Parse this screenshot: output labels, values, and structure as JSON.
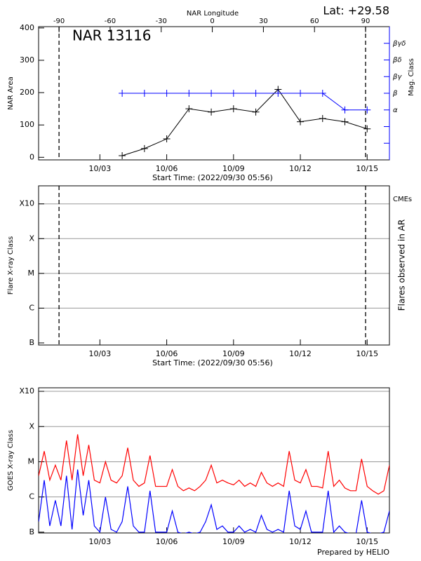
{
  "chart_data": [
    {
      "type": "line",
      "title": "NAR 13116",
      "annotation": "Lat: +29.58",
      "x_label": "Start Time: (2022/09/30 05:56)",
      "y_label": "NAR Area",
      "x2_label": "NAR Longitude",
      "y2_label": "Mag. Class",
      "xlim": [
        "09/30 05:56",
        "10/16 00:00"
      ],
      "xticks": [
        "10/03",
        "10/06",
        "10/09",
        "10/12",
        "10/15"
      ],
      "x2lim": [
        -102,
        104
      ],
      "x2ticks": [
        -90,
        -60,
        -30,
        0,
        30,
        60,
        90
      ],
      "ylim": [
        -8,
        404
      ],
      "yticks": [
        0,
        100,
        200,
        300,
        400
      ],
      "y2ticks": [
        null,
        null,
        "α",
        "β",
        "βγ",
        "βδ",
        "βγδ"
      ],
      "x": [
        "10/04",
        "10/05",
        "10/06",
        "10/07",
        "10/08",
        "10/09",
        "10/10",
        "10/11",
        "10/12",
        "10/13",
        "10/14",
        "10/15"
      ],
      "series": [
        {
          "color": "#000000",
          "values": [
            5,
            27,
            57,
            150,
            140,
            150,
            140,
            210,
            110,
            120,
            110,
            88
          ]
        },
        {
          "color": "#0000ff",
          "axis": "y2",
          "values": [
            "β",
            "β",
            "β",
            "β",
            "β",
            "β",
            "β",
            "β",
            "β",
            "β",
            "α",
            "α"
          ]
        }
      ]
    },
    {
      "type": "flares",
      "x_label": "Start Time: (2022/09/30 05:56)",
      "y_label": "Flare X-ray Class",
      "y2_label": "Flares observed in AR",
      "annotation": "CMEs",
      "annotation_color": "#ff0000",
      "xlim": [
        "09/30 05:56",
        "10/16 00:00"
      ],
      "xticks": [
        "10/03",
        "10/06",
        "10/09",
        "10/12",
        "10/15"
      ],
      "log": true,
      "grid": true,
      "ylim": [
        8.7e-08,
        0.0033
      ],
      "yticks": [
        {
          "value": 1e-07,
          "label": "B"
        },
        {
          "value": 1e-06,
          "label": "C"
        },
        {
          "value": 1e-05,
          "label": "M"
        },
        {
          "value": 0.0001,
          "label": "X"
        },
        {
          "value": 0.001,
          "label": "X10"
        }
      ]
    },
    {
      "type": "line",
      "y_label": "GOES X-ray Class",
      "xlim": [
        "09/30 05:56",
        "10/16 00:00"
      ],
      "xticks": [
        "10/03",
        "10/06",
        "10/09",
        "10/12",
        "10/15"
      ],
      "log": true,
      "grid": true,
      "ylim": [
        9.5e-08,
        0.00126
      ],
      "yticks": [
        {
          "value": 1e-07,
          "label": "B"
        },
        {
          "value": 1e-06,
          "label": "C"
        },
        {
          "value": 1e-05,
          "label": "M"
        },
        {
          "value": 0.0001,
          "label": "X"
        },
        {
          "value": 0.001,
          "label": "X10"
        }
      ],
      "x": [
        "09/30 06:00",
        "09/30 12:00",
        "09/30 18:00",
        "10/01 00:00",
        "10/01 06:00",
        "10/01 12:00",
        "10/01 18:00",
        "10/02 00:00",
        "10/02 06:00",
        "10/02 12:00",
        "10/02 18:00",
        "10/03 00:00",
        "10/03 06:00",
        "10/03 12:00",
        "10/03 18:00",
        "10/04 00:00",
        "10/04 06:00",
        "10/04 12:00",
        "10/04 18:00",
        "10/05 00:00",
        "10/05 06:00",
        "10/05 12:00",
        "10/05 18:00",
        "10/06 00:00",
        "10/06 06:00",
        "10/06 12:00",
        "10/06 18:00",
        "10/07 00:00",
        "10/07 06:00",
        "10/07 12:00",
        "10/07 18:00",
        "10/08 00:00",
        "10/08 06:00",
        "10/08 12:00",
        "10/08 18:00",
        "10/09 00:00",
        "10/09 06:00",
        "10/09 12:00",
        "10/09 18:00",
        "10/10 00:00",
        "10/10 06:00",
        "10/10 12:00",
        "10/10 18:00",
        "10/11 00:00",
        "10/11 06:00",
        "10/11 12:00",
        "10/11 18:00",
        "10/12 00:00",
        "10/12 06:00",
        "10/12 12:00",
        "10/12 18:00",
        "10/13 00:00",
        "10/13 06:00",
        "10/13 12:00",
        "10/13 18:00",
        "10/14 00:00",
        "10/14 06:00",
        "10/14 12:00",
        "10/14 18:00",
        "10/15 00:00",
        "10/15 06:00",
        "10/15 12:00",
        "10/15 18:00",
        "10/16 00:00"
      ],
      "series": [
        {
          "color": "#ff0000",
          "values": [
            4e-06,
            2e-05,
            3e-06,
            8e-06,
            3e-06,
            4e-05,
            3e-06,
            6e-05,
            4e-06,
            3e-05,
            3e-06,
            2.5e-06,
            1e-05,
            3e-06,
            2.5e-06,
            4e-06,
            2.5e-05,
            3e-06,
            2e-06,
            2.5e-06,
            1.5e-05,
            2e-06,
            2e-06,
            2e-06,
            6e-06,
            2e-06,
            1.5e-06,
            1.8e-06,
            1.5e-06,
            2e-06,
            3e-06,
            8e-06,
            2.5e-06,
            3e-06,
            2.5e-06,
            2.2e-06,
            3e-06,
            2e-06,
            2.5e-06,
            2e-06,
            5e-06,
            2.5e-06,
            2e-06,
            2.5e-06,
            2e-06,
            2e-05,
            3e-06,
            2.5e-06,
            6e-06,
            2e-06,
            2e-06,
            1.8e-06,
            2e-05,
            2e-06,
            3e-06,
            1.8e-06,
            1.5e-06,
            1.5e-06,
            1.2e-05,
            2e-06,
            1.5e-06,
            1.2e-06,
            1.5e-06,
            8e-06
          ]
        },
        {
          "color": "#0000ff",
          "values": [
            2e-07,
            3e-06,
            1.5e-07,
            8e-07,
            1.5e-07,
            4e-06,
            1.2e-07,
            6e-06,
            3e-07,
            3e-06,
            1.5e-07,
            1e-07,
            1e-06,
            1.2e-07,
            1e-07,
            2e-07,
            2e-06,
            1.5e-07,
            1e-07,
            1e-07,
            1.5e-06,
            1e-07,
            1e-07,
            1e-07,
            4e-07,
            1e-07,
            9e-08,
            1e-07,
            9e-08,
            1e-07,
            2e-07,
            6e-07,
            1.2e-07,
            1.5e-07,
            1e-07,
            1e-07,
            1.5e-07,
            1e-07,
            1.2e-07,
            1e-07,
            3e-07,
            1.2e-07,
            1e-07,
            1.2e-07,
            1e-07,
            1.5e-06,
            1.5e-07,
            1.2e-07,
            4e-07,
            1e-07,
            1e-07,
            1e-07,
            1.5e-06,
            1e-07,
            1.5e-07,
            1e-07,
            9e-08,
            9e-08,
            8e-07,
            1e-07,
            9e-08,
            9e-08,
            1e-07,
            4e-07
          ]
        }
      ]
    }
  ],
  "footer": "Prepared by HELIO"
}
